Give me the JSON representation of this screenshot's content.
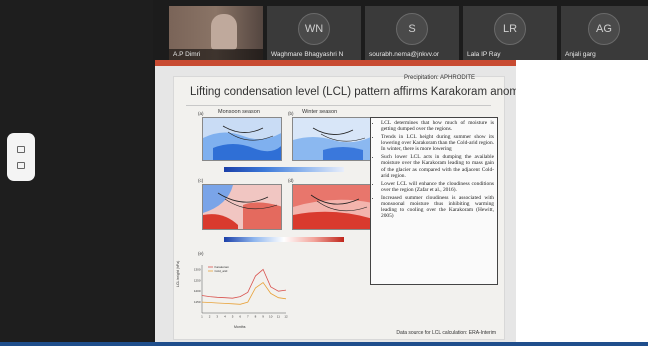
{
  "participants": [
    {
      "name": "A.P Dimri",
      "initials": "",
      "video": true
    },
    {
      "name": "Waghmare Bhagyashri N",
      "initials": "WN",
      "video": false
    },
    {
      "name": "sourabh.nema@jnkvv.or",
      "initials": "S",
      "video": false
    },
    {
      "name": "Lala IP Ray",
      "initials": "LR",
      "video": false
    },
    {
      "name": "Anjali garg",
      "initials": "AG",
      "video": false
    }
  ],
  "slide": {
    "header_note": "Precipitation: APHRODITE",
    "title": "Lifting condensation level (LCL) pattern affirms Karakoram anomaly",
    "monsoon_label": "Monsoon season",
    "winter_label": "Winter season",
    "panel_a": "(a)",
    "panel_b": "(b)",
    "panel_c": "(c)",
    "panel_d": "(d)",
    "panel_e": "(e)",
    "bullets": [
      "LCL determines that how much of moisture is getting dumped over the regions.",
      "Trends in LCL height during summer show its lowering over Karakoram than the Cold-arid region. In winter, there is more lowering",
      "Such lower LCL acts in dumping the available moisture over the Karakoram leading to mass gain of the glacier as compared with the adjacent Cold-arid region.",
      "Lower LCL will enhance the cloudiness conditions over the region (Zafar et al., 2016).",
      "Increased summer cloudiness is associated with monsoonal moisture thus inhibiting warming leading to cooling over the Karakoram (Hewitt, 2005)"
    ],
    "source_note": "Data source for LCL calculation: ERA-Interim",
    "legend_karakoram": "Karakoram",
    "legend_coldarid": "Cold_arid",
    "y_axis_label": "LCL height (hPa)",
    "x_axis_label": "Months"
  },
  "colors": {
    "accent_red": "#c84b32",
    "map_blue": "#2f6fd6",
    "map_red": "#d93a2e",
    "bottom_bar": "#1f4e8c"
  },
  "chart_data": {
    "type": "line",
    "x": [
      1,
      2,
      3,
      4,
      5,
      6,
      7,
      8,
      9,
      10,
      11,
      12
    ],
    "series": [
      {
        "name": "Karakoram",
        "values": [
          1180,
          1175,
          1172,
          1170,
          1168,
          1175,
          1195,
          1270,
          1300,
          1220,
          1200,
          1205
        ]
      },
      {
        "name": "Cold_arid",
        "values": [
          1150,
          1148,
          1146,
          1144,
          1142,
          1140,
          1150,
          1215,
          1240,
          1190,
          1170,
          1165
        ]
      }
    ],
    "ylim": [
      1100,
      1320
    ],
    "xlabel": "Months",
    "ylabel": "LCL height (hPa)"
  }
}
